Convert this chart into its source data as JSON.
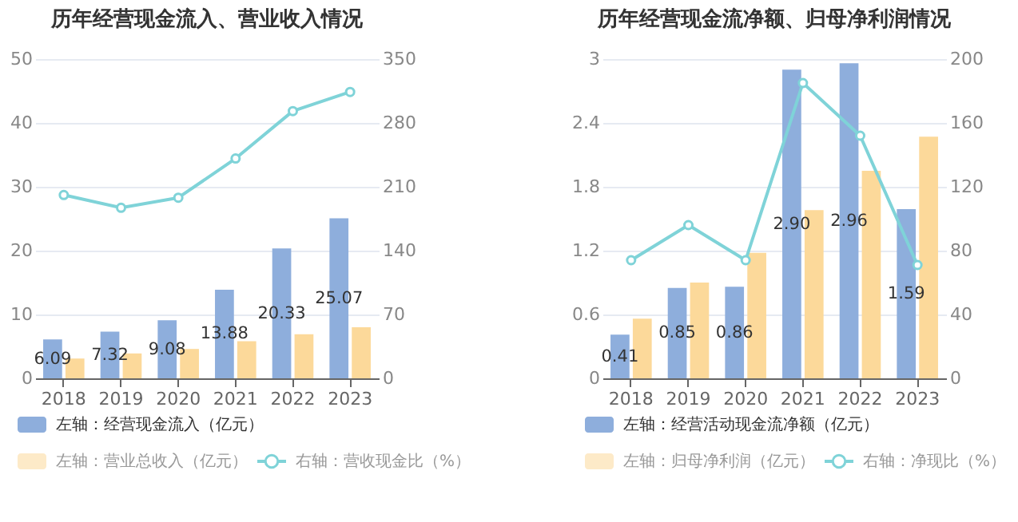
{
  "chart_data": [
    {
      "type": "bar",
      "title": "历年经营现金流入、营业收入情况",
      "categories": [
        "2018",
        "2019",
        "2020",
        "2021",
        "2022",
        "2023"
      ],
      "series": [
        {
          "name": "左轴：经营现金流入（亿元）",
          "color": "#8eaedc",
          "values": [
            6.09,
            7.32,
            9.08,
            13.88,
            20.33,
            25.07
          ],
          "value_labels": [
            "6.09",
            "7.32",
            "9.08",
            "13.88",
            "20.33",
            "25.07"
          ]
        },
        {
          "name": "左轴：营业总收入（亿元）",
          "color": "#fcd99a",
          "values": [
            3.1,
            3.9,
            4.6,
            5.8,
            6.9,
            8.0
          ]
        },
        {
          "name": "右轴：营收现金比（%）",
          "type": "line",
          "axis": "y2",
          "color": "#7fd3d8",
          "values": [
            201,
            187,
            198,
            241,
            293,
            314
          ]
        }
      ],
      "ylim": [
        0,
        50
      ],
      "yticks": [
        0,
        10,
        20,
        30,
        40,
        50
      ],
      "y2lim": [
        0,
        350
      ],
      "y2ticks": [
        0,
        70,
        140,
        210,
        280,
        350
      ],
      "grid": "y",
      "legend": "bottom",
      "marker": "circle"
    },
    {
      "type": "bar",
      "title": "历年经营现金流净额、归母净利润情况",
      "categories": [
        "2018",
        "2019",
        "2020",
        "2021",
        "2022",
        "2023"
      ],
      "series": [
        {
          "name": "左轴：经营活动现金流净额（亿元）",
          "color": "#8eaedc",
          "values": [
            0.41,
            0.85,
            0.86,
            2.9,
            2.96,
            1.59
          ],
          "value_labels": [
            "0.41",
            "0.85",
            "0.86",
            "2.90",
            "2.96",
            "1.59"
          ]
        },
        {
          "name": "左轴：归母净利润（亿元）",
          "color": "#fcd99a",
          "values": [
            0.56,
            0.9,
            1.18,
            1.58,
            1.95,
            2.27
          ]
        },
        {
          "name": "右轴：净现比（%）",
          "type": "line",
          "axis": "y2",
          "color": "#7fd3d8",
          "values": [
            74,
            96,
            74,
            185,
            152,
            71
          ]
        }
      ],
      "ylim": [
        0,
        3
      ],
      "yticks": [
        0,
        0.6,
        1.2,
        1.8,
        2.4,
        3
      ],
      "y2lim": [
        0,
        200
      ],
      "y2ticks": [
        0,
        40,
        80,
        120,
        160,
        200
      ],
      "grid": "y",
      "legend": "bottom",
      "marker": "circle"
    }
  ]
}
